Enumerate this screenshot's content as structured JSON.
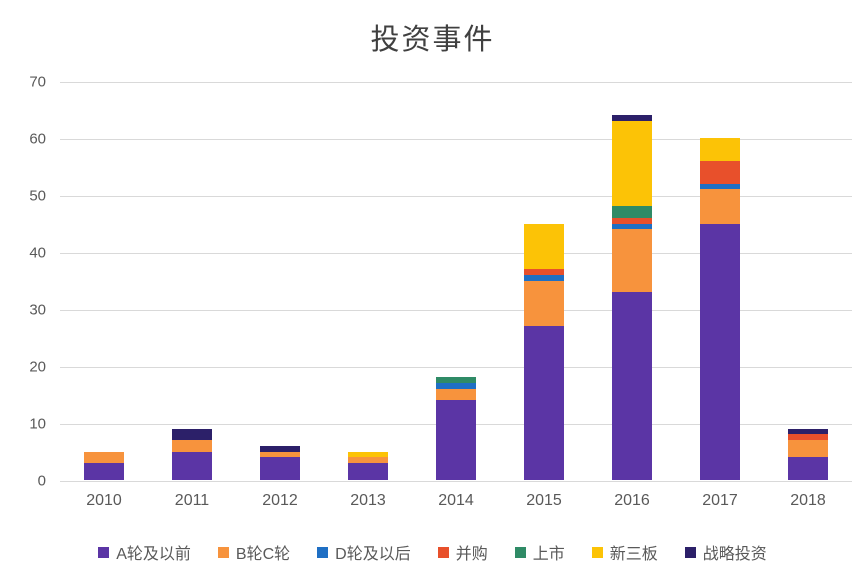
{
  "chart_data": {
    "type": "bar",
    "stacked": true,
    "title": "投资事件",
    "categories": [
      "2010",
      "2011",
      "2012",
      "2013",
      "2014",
      "2015",
      "2016",
      "2017",
      "2018"
    ],
    "series": [
      {
        "name": "A轮及以前",
        "color": "#5b35a5",
        "values": [
          3,
          5,
          4,
          3,
          14,
          27,
          33,
          45,
          4
        ]
      },
      {
        "name": "B轮C轮",
        "color": "#f7933d",
        "values": [
          2,
          2,
          1,
          1,
          2,
          8,
          11,
          6,
          3
        ]
      },
      {
        "name": "D轮及以后",
        "color": "#1f6fc4",
        "values": [
          0,
          0,
          0,
          0,
          1,
          1,
          1,
          1,
          0
        ]
      },
      {
        "name": "并购",
        "color": "#e8502b",
        "values": [
          0,
          0,
          0,
          0,
          0,
          1,
          1,
          4,
          1
        ]
      },
      {
        "name": "上市",
        "color": "#2f8b66",
        "values": [
          0,
          0,
          0,
          0,
          1,
          0,
          2,
          0,
          0
        ]
      },
      {
        "name": "新三板",
        "color": "#fcc306",
        "values": [
          0,
          0,
          0,
          1,
          0,
          8,
          15,
          4,
          0
        ]
      },
      {
        "name": "战略投资",
        "color": "#2c2069",
        "values": [
          0,
          2,
          1,
          0,
          0,
          0,
          1,
          0,
          1
        ]
      }
    ],
    "totals": [
      5,
      9,
      6,
      5,
      18,
      45,
      64,
      60,
      9
    ],
    "ylim": [
      0,
      70
    ],
    "ytick_interval": 10,
    "yticks": [
      "0",
      "10",
      "20",
      "30",
      "40",
      "50",
      "60",
      "70"
    ],
    "xlabel": "",
    "ylabel": "",
    "grid": true,
    "legend_position": "bottom"
  },
  "colors": {
    "grid": "#d9d9d9",
    "axis_text": "#595959",
    "title_text": "#404040",
    "background": "#ffffff"
  }
}
